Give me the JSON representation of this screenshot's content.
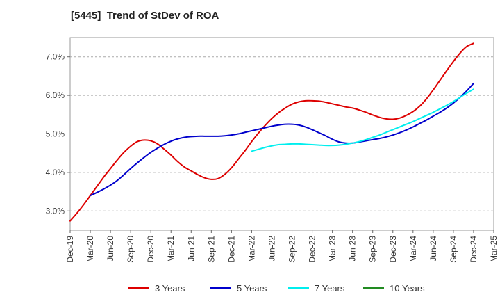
{
  "title": "[5445]  Trend of StDev of ROA",
  "chart_data": {
    "type": "line",
    "title": "[5445]  Trend of StDev of ROA",
    "xlabel": "",
    "ylabel": "",
    "x_ticks": [
      "Dec-19",
      "Mar-20",
      "Jun-20",
      "Sep-20",
      "Dec-20",
      "Mar-21",
      "Jun-21",
      "Sep-21",
      "Dec-21",
      "Mar-22",
      "Jun-22",
      "Sep-22",
      "Dec-22",
      "Mar-23",
      "Jun-23",
      "Sep-23",
      "Dec-23",
      "Mar-24",
      "Jun-24",
      "Sep-24",
      "Dec-24",
      "Mar-25"
    ],
    "y_ticks": [
      "3.0%",
      "4.0%",
      "5.0%",
      "6.0%",
      "7.0%"
    ],
    "y_tick_values": [
      3.0,
      4.0,
      5.0,
      6.0,
      7.0
    ],
    "ylim": [
      2.5,
      7.5
    ],
    "grid": "horizontal dashed",
    "legend_position": "bottom",
    "series": [
      {
        "name": "3 Years",
        "color": "#dd0000",
        "x": [
          "Dec-19",
          "Jan-20",
          "Feb-20",
          "Mar-20",
          "Apr-20",
          "May-20",
          "Jun-20",
          "Jul-20",
          "Aug-20",
          "Sep-20",
          "Oct-20",
          "Nov-20",
          "Dec-20",
          "Jan-21",
          "Feb-21",
          "Mar-21",
          "Apr-21",
          "May-21",
          "Jun-21",
          "Jul-21",
          "Aug-21",
          "Sep-21",
          "Oct-21",
          "Nov-21",
          "Dec-21",
          "Jan-22",
          "Feb-22",
          "Mar-22",
          "Apr-22",
          "May-22",
          "Jun-22",
          "Jul-22",
          "Aug-22",
          "Sep-22",
          "Oct-22",
          "Nov-22",
          "Dec-22",
          "Jan-23",
          "Feb-23",
          "Mar-23",
          "Apr-23",
          "May-23",
          "Jun-23",
          "Jul-23",
          "Aug-23",
          "Sep-23",
          "Oct-23",
          "Nov-23",
          "Dec-23",
          "Jan-24",
          "Feb-24",
          "Mar-24",
          "Apr-24",
          "May-24",
          "Jun-24",
          "Jul-24",
          "Aug-24",
          "Sep-24",
          "Oct-24",
          "Nov-24",
          "Dec-24"
        ],
        "values": [
          2.74,
          2.94,
          3.16,
          3.4,
          3.64,
          3.88,
          4.1,
          4.32,
          4.52,
          4.68,
          4.8,
          4.84,
          4.82,
          4.74,
          4.6,
          4.45,
          4.28,
          4.14,
          4.04,
          3.94,
          3.86,
          3.82,
          3.84,
          3.95,
          4.12,
          4.34,
          4.56,
          4.8,
          5.02,
          5.22,
          5.4,
          5.55,
          5.67,
          5.77,
          5.83,
          5.86,
          5.86,
          5.85,
          5.82,
          5.78,
          5.74,
          5.7,
          5.67,
          5.62,
          5.56,
          5.49,
          5.43,
          5.39,
          5.38,
          5.41,
          5.48,
          5.58,
          5.72,
          5.91,
          6.14,
          6.39,
          6.64,
          6.88,
          7.1,
          7.27,
          7.35
        ]
      },
      {
        "name": "5 Years",
        "color": "#0000cc",
        "x": [
          "Mar-20",
          "Apr-20",
          "May-20",
          "Jun-20",
          "Jul-20",
          "Aug-20",
          "Sep-20",
          "Oct-20",
          "Nov-20",
          "Dec-20",
          "Jan-21",
          "Feb-21",
          "Mar-21",
          "Apr-21",
          "May-21",
          "Jun-21",
          "Jul-21",
          "Aug-21",
          "Sep-21",
          "Oct-21",
          "Nov-21",
          "Dec-21",
          "Jan-22",
          "Feb-22",
          "Mar-22",
          "Apr-22",
          "May-22",
          "Jun-22",
          "Jul-22",
          "Aug-22",
          "Sep-22",
          "Oct-22",
          "Nov-22",
          "Dec-22",
          "Jan-23",
          "Feb-23",
          "Mar-23",
          "Apr-23",
          "May-23",
          "Jun-23",
          "Jul-23",
          "Aug-23",
          "Sep-23",
          "Oct-23",
          "Nov-23",
          "Dec-23",
          "Jan-24",
          "Feb-24",
          "Mar-24",
          "Apr-24",
          "May-24",
          "Jun-24",
          "Jul-24",
          "Aug-24",
          "Sep-24",
          "Oct-24",
          "Nov-24",
          "Dec-24"
        ],
        "values": [
          3.4,
          3.48,
          3.57,
          3.67,
          3.79,
          3.94,
          4.1,
          4.25,
          4.39,
          4.52,
          4.63,
          4.73,
          4.81,
          4.87,
          4.91,
          4.93,
          4.94,
          4.94,
          4.94,
          4.94,
          4.95,
          4.97,
          5.0,
          5.04,
          5.08,
          5.12,
          5.16,
          5.2,
          5.23,
          5.25,
          5.25,
          5.23,
          5.18,
          5.11,
          5.03,
          4.95,
          4.86,
          4.79,
          4.76,
          4.76,
          4.79,
          4.82,
          4.85,
          4.88,
          4.92,
          4.97,
          5.03,
          5.1,
          5.18,
          5.27,
          5.36,
          5.46,
          5.56,
          5.67,
          5.8,
          5.95,
          6.12,
          6.31
        ]
      },
      {
        "name": "7 Years",
        "color": "#00eeee",
        "x": [
          "Mar-22",
          "Apr-22",
          "May-22",
          "Jun-22",
          "Jul-22",
          "Aug-22",
          "Sep-22",
          "Oct-22",
          "Nov-22",
          "Dec-22",
          "Jan-23",
          "Feb-23",
          "Mar-23",
          "Apr-23",
          "May-23",
          "Jun-23",
          "Jul-23",
          "Aug-23",
          "Sep-23",
          "Oct-23",
          "Nov-23",
          "Dec-23",
          "Jan-24",
          "Feb-24",
          "Mar-24",
          "Apr-24",
          "May-24",
          "Jun-24",
          "Jul-24",
          "Aug-24",
          "Sep-24",
          "Oct-24",
          "Nov-24",
          "Dec-24"
        ],
        "values": [
          4.55,
          4.6,
          4.65,
          4.69,
          4.72,
          4.73,
          4.74,
          4.74,
          4.73,
          4.72,
          4.71,
          4.7,
          4.7,
          4.71,
          4.73,
          4.76,
          4.8,
          4.85,
          4.91,
          4.97,
          5.04,
          5.11,
          5.18,
          5.25,
          5.32,
          5.4,
          5.48,
          5.56,
          5.65,
          5.74,
          5.84,
          5.95,
          6.06,
          6.16
        ]
      },
      {
        "name": "10 Years",
        "color": "#228b22",
        "x": [],
        "values": []
      }
    ]
  }
}
